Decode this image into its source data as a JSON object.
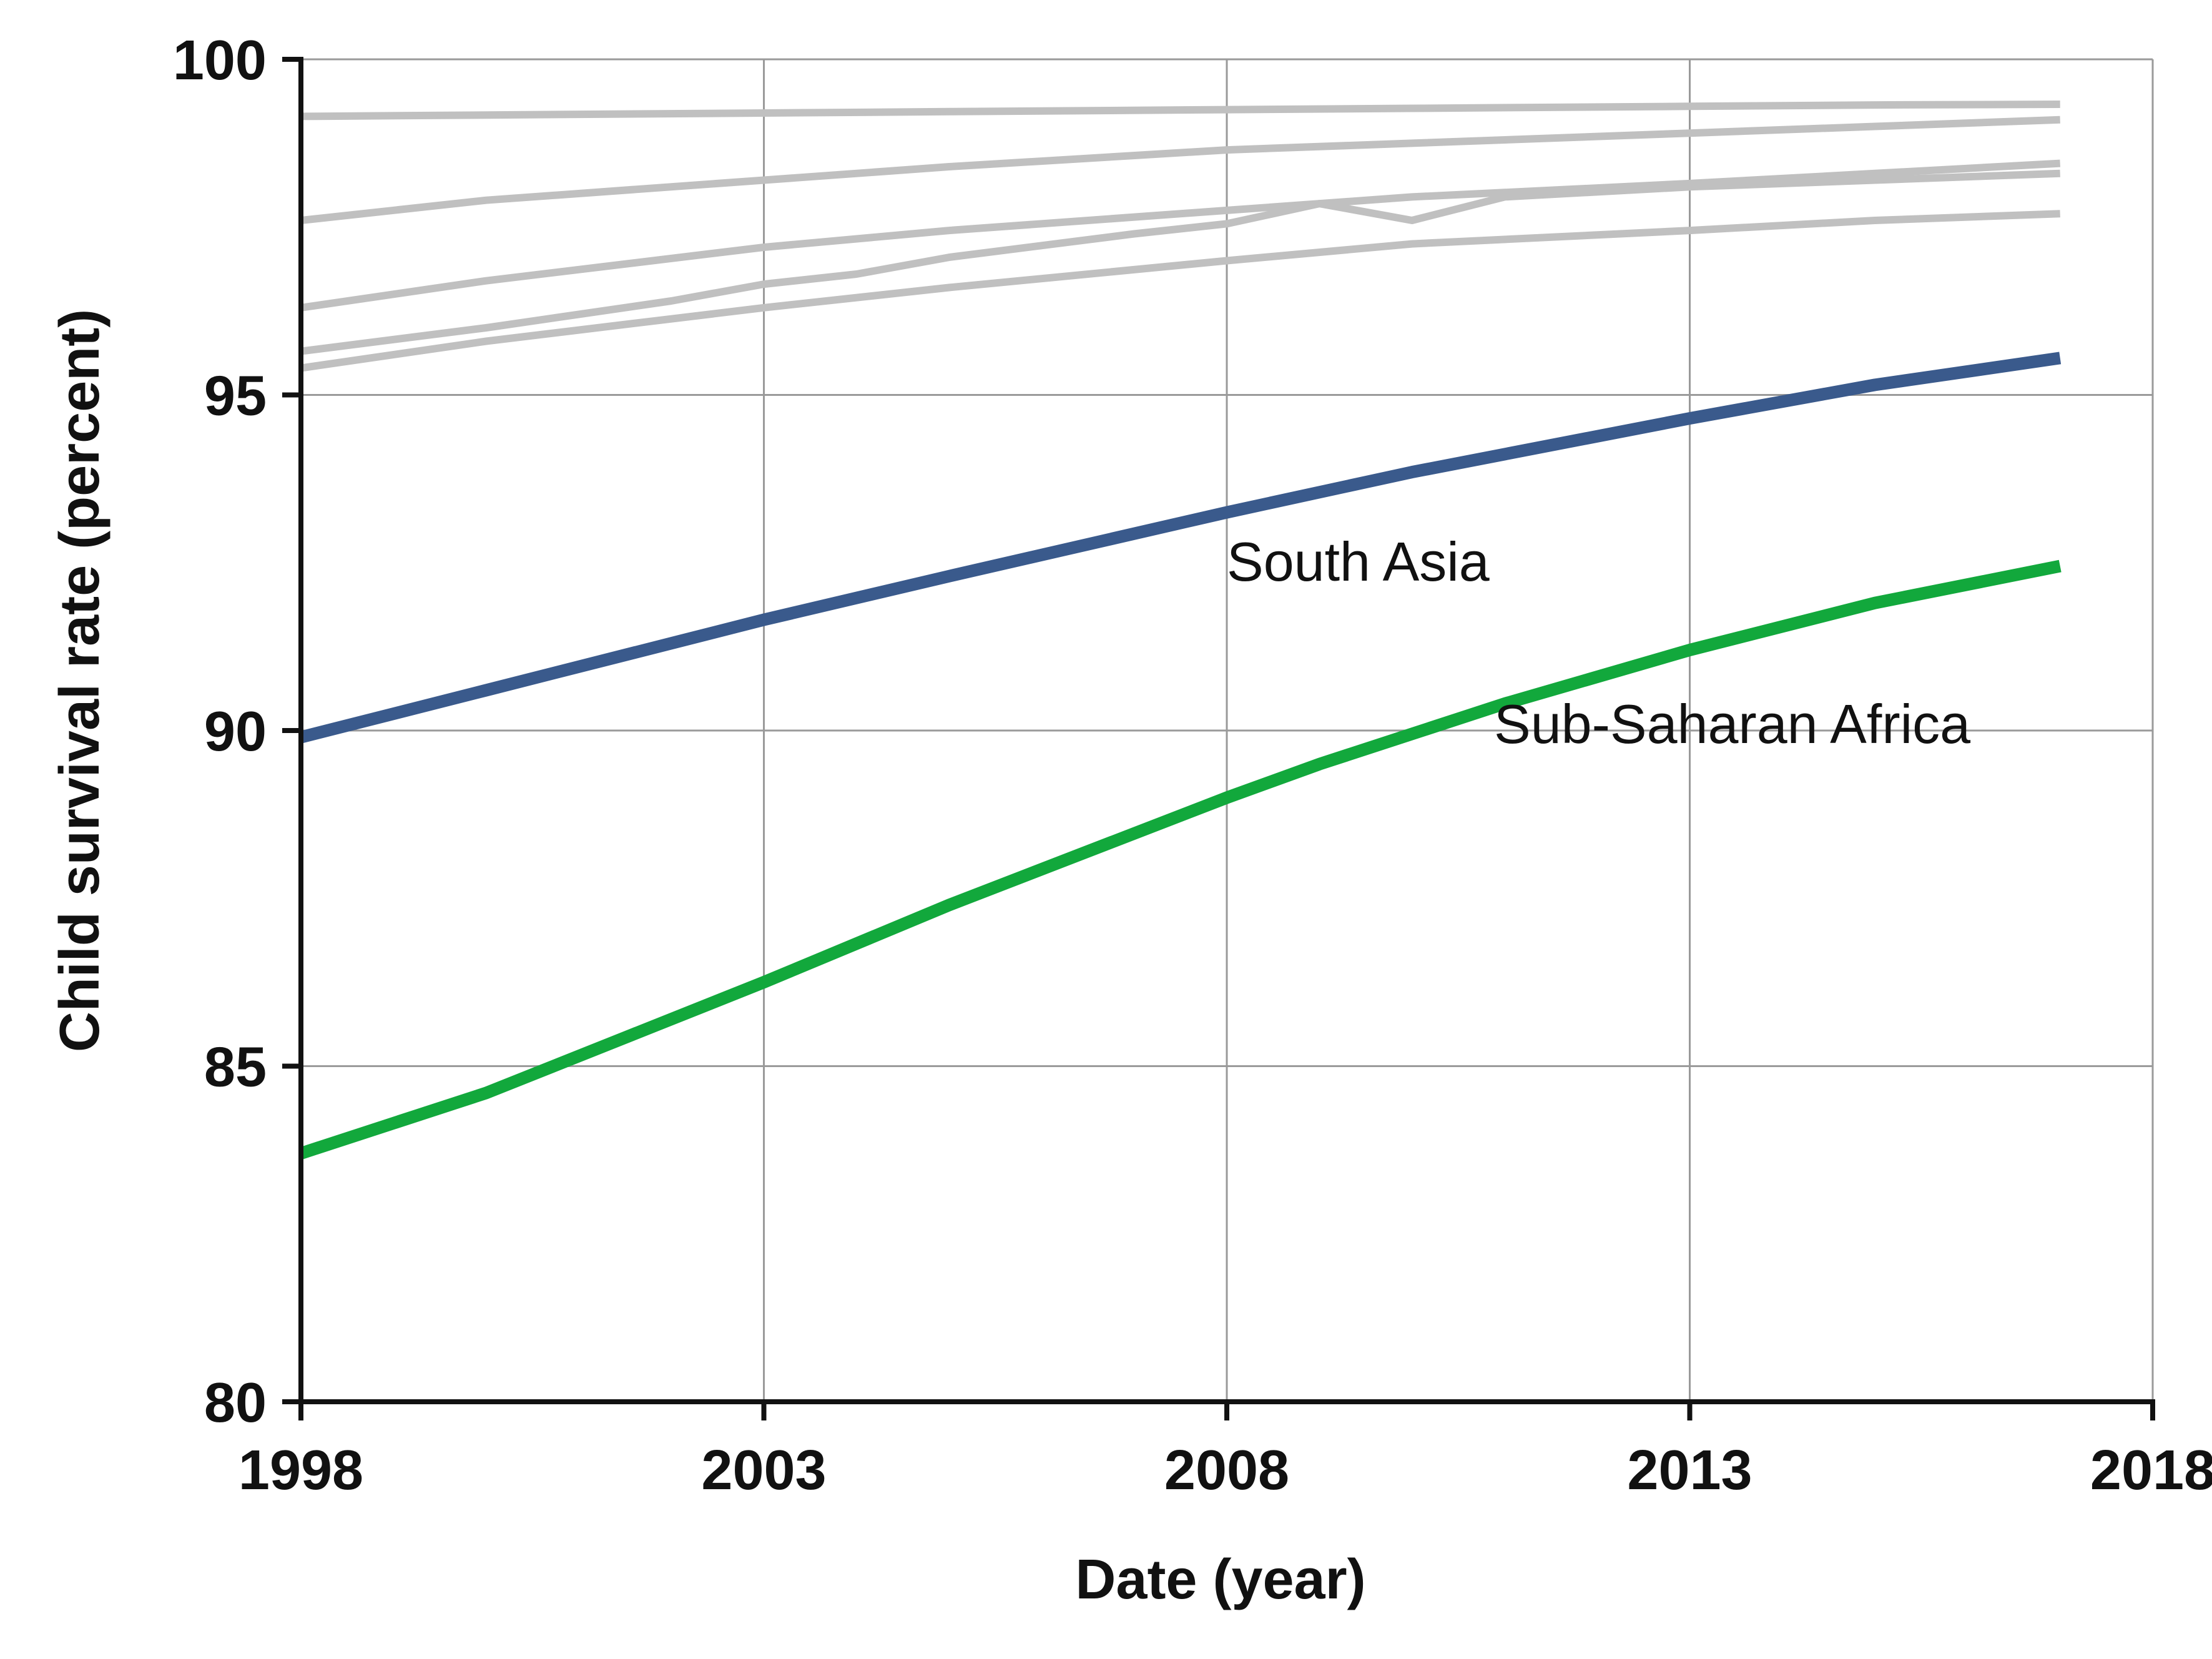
{
  "chart_data": {
    "type": "line",
    "xlabel": "Date (year)",
    "ylabel": "Child survival rate (percent)",
    "xlim": [
      1998,
      2018
    ],
    "ylim": [
      80,
      100
    ],
    "xticks": [
      "1998",
      "2003",
      "2008",
      "2013",
      "2018"
    ],
    "yticks": [
      "80",
      "85",
      "90",
      "95",
      "100"
    ],
    "grid": true,
    "series": [
      {
        "color": "#c0c0c0",
        "x": [
          "1998",
          "2000",
          "2003",
          "2005",
          "2008",
          "2010",
          "2013",
          "2015",
          "2017"
        ],
        "values": [
          99.15,
          99.17,
          99.2,
          99.22,
          99.25,
          99.27,
          99.3,
          99.32,
          99.33
        ]
      },
      {
        "color": "#c0c0c0",
        "x": [
          "1998",
          "2000",
          "2003",
          "2005",
          "2008",
          "2010",
          "2013",
          "2015",
          "2017"
        ],
        "values": [
          97.6,
          97.9,
          98.2,
          98.4,
          98.65,
          98.75,
          98.9,
          99.0,
          99.1
        ]
      },
      {
        "color": "#c0c0c0",
        "x": [
          "1998",
          "2000",
          "2003",
          "2005",
          "2008",
          "2010",
          "2013",
          "2015",
          "2017"
        ],
        "values": [
          96.3,
          96.7,
          97.2,
          97.45,
          97.75,
          97.95,
          98.15,
          98.3,
          98.45
        ]
      },
      {
        "color": "#c0c0c0",
        "x": [
          "1998",
          "2000",
          "2002",
          "2003",
          "2004",
          "2005",
          "2007",
          "2008",
          "2009",
          "2010",
          "2011",
          "2013",
          "2015",
          "2017"
        ],
        "values": [
          95.65,
          96.0,
          96.4,
          96.65,
          96.8,
          97.05,
          97.4,
          97.55,
          97.85,
          97.6,
          97.95,
          98.1,
          98.2,
          98.3
        ]
      },
      {
        "color": "#c0c0c0",
        "x": [
          "1998",
          "2000",
          "2003",
          "2005",
          "2008",
          "2010",
          "2013",
          "2015",
          "2017"
        ],
        "values": [
          95.4,
          95.8,
          96.3,
          96.6,
          97.0,
          97.25,
          97.45,
          97.6,
          97.7
        ]
      },
      {
        "name": "South Asia",
        "color": "#3a5a8c",
        "x": [
          "1998",
          "2000",
          "2003",
          "2005",
          "2008",
          "2010",
          "2013",
          "2015",
          "2017"
        ],
        "values": [
          89.9,
          90.6,
          91.65,
          92.3,
          93.25,
          93.85,
          94.65,
          95.15,
          95.55
        ]
      },
      {
        "name": "Sub-Saharan Africa",
        "color": "#12a83c",
        "x": [
          "1998",
          "2000",
          "2003",
          "2005",
          "2008",
          "2009",
          "2011",
          "2013",
          "2015",
          "2017"
        ],
        "values": [
          83.7,
          84.6,
          86.25,
          87.4,
          89.0,
          89.5,
          90.4,
          91.2,
          91.9,
          92.45
        ]
      }
    ]
  }
}
